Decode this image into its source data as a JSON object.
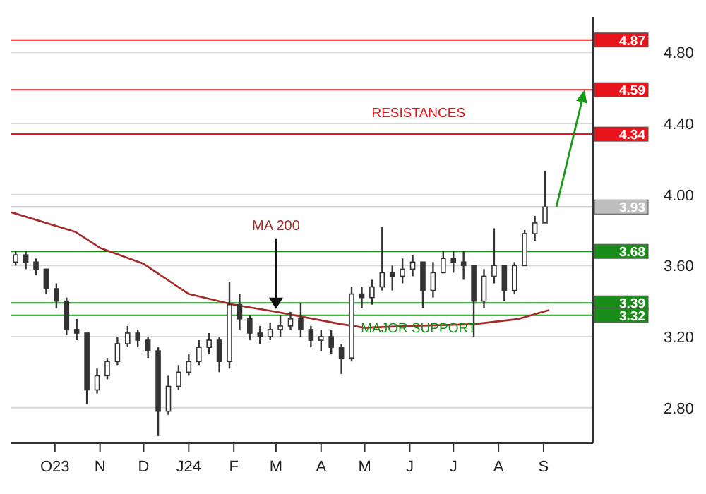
{
  "chart_data": {
    "type": "candlestick",
    "color": "#333333",
    "x": [
      "2023-09-04",
      "2023-09-11",
      "2023-09-18",
      "2023-09-25",
      "2023-10-02",
      "2023-10-09",
      "2023-10-16",
      "2023-10-23",
      "2023-10-30",
      "2023-11-06",
      "2023-11-13",
      "2023-11-20",
      "2023-11-27",
      "2023-12-04",
      "2023-12-11",
      "2023-12-18",
      "2023-12-25",
      "2024-01-01",
      "2024-01-08",
      "2024-01-15",
      "2024-01-22",
      "2024-01-29",
      "2024-02-05",
      "2024-02-12",
      "2024-02-19",
      "2024-02-26",
      "2024-03-04",
      "2024-03-11",
      "2024-03-18",
      "2024-03-25",
      "2024-04-01",
      "2024-04-08",
      "2024-04-15",
      "2024-04-22",
      "2024-04-29",
      "2024-05-06",
      "2024-05-13",
      "2024-05-20",
      "2024-05-27",
      "2024-06-03",
      "2024-06-10",
      "2024-06-17",
      "2024-06-24",
      "2024-07-01",
      "2024-07-08",
      "2024-07-15",
      "2024-07-22",
      "2024-07-29",
      "2024-08-05",
      "2024-08-12",
      "2024-08-19",
      "2024-08-26",
      "2024-09-02"
    ],
    "ohlc": [
      [
        3.62,
        3.68,
        3.6,
        3.66
      ],
      [
        3.66,
        3.68,
        3.58,
        3.62
      ],
      [
        3.62,
        3.64,
        3.55,
        3.58
      ],
      [
        3.58,
        3.58,
        3.44,
        3.47
      ],
      [
        3.47,
        3.5,
        3.36,
        3.4
      ],
      [
        3.4,
        3.42,
        3.21,
        3.24
      ],
      [
        3.24,
        3.3,
        3.18,
        3.22
      ],
      [
        3.22,
        3.22,
        2.82,
        2.9
      ],
      [
        2.9,
        3.02,
        2.88,
        2.98
      ],
      [
        2.98,
        3.08,
        2.96,
        3.06
      ],
      [
        3.06,
        3.2,
        3.04,
        3.16
      ],
      [
        3.16,
        3.26,
        3.14,
        3.22
      ],
      [
        3.22,
        3.24,
        3.14,
        3.18
      ],
      [
        3.18,
        3.2,
        3.08,
        3.12
      ],
      [
        3.12,
        3.14,
        2.64,
        2.78
      ],
      [
        2.78,
        2.98,
        2.76,
        2.92
      ],
      [
        2.92,
        3.04,
        2.9,
        3.0
      ],
      [
        3.0,
        3.1,
        2.98,
        3.06
      ],
      [
        3.06,
        3.18,
        3.04,
        3.14
      ],
      [
        3.14,
        3.22,
        3.1,
        3.18
      ],
      [
        3.18,
        3.2,
        3.0,
        3.06
      ],
      [
        3.06,
        3.51,
        3.02,
        3.38
      ],
      [
        3.38,
        3.44,
        3.24,
        3.3
      ],
      [
        3.3,
        3.32,
        3.18,
        3.22
      ],
      [
        3.22,
        3.26,
        3.16,
        3.2
      ],
      [
        3.2,
        3.28,
        3.18,
        3.24
      ],
      [
        3.24,
        3.32,
        3.2,
        3.26
      ],
      [
        3.26,
        3.34,
        3.24,
        3.3
      ],
      [
        3.3,
        3.39,
        3.2,
        3.24
      ],
      [
        3.24,
        3.26,
        3.14,
        3.18
      ],
      [
        3.18,
        3.24,
        3.12,
        3.2
      ],
      [
        3.2,
        3.24,
        3.1,
        3.14
      ],
      [
        3.14,
        3.16,
        2.99,
        3.08
      ],
      [
        3.08,
        3.48,
        3.06,
        3.44
      ],
      [
        3.44,
        3.48,
        3.36,
        3.42
      ],
      [
        3.42,
        3.52,
        3.38,
        3.48
      ],
      [
        3.48,
        3.82,
        3.46,
        3.56
      ],
      [
        3.56,
        3.6,
        3.46,
        3.54
      ],
      [
        3.54,
        3.64,
        3.5,
        3.58
      ],
      [
        3.58,
        3.66,
        3.54,
        3.62
      ],
      [
        3.62,
        3.62,
        3.36,
        3.46
      ],
      [
        3.46,
        3.62,
        3.42,
        3.56
      ],
      [
        3.56,
        3.68,
        3.56,
        3.64
      ],
      [
        3.64,
        3.68,
        3.56,
        3.62
      ],
      [
        3.62,
        3.68,
        3.52,
        3.6
      ],
      [
        3.6,
        3.6,
        3.2,
        3.4
      ],
      [
        3.4,
        3.58,
        3.36,
        3.54
      ],
      [
        3.54,
        3.81,
        3.5,
        3.6
      ],
      [
        3.6,
        3.6,
        3.4,
        3.46
      ],
      [
        3.46,
        3.62,
        3.44,
        3.6
      ],
      [
        3.6,
        3.8,
        3.6,
        3.78
      ],
      [
        3.78,
        3.88,
        3.74,
        3.84
      ],
      [
        3.84,
        4.13,
        3.84,
        3.93
      ]
    ],
    "series": [
      {
        "type": "line",
        "name": "MA 200",
        "color": "#a52a2a",
        "x": [
          "2023-09-01",
          "2023-10-15",
          "2023-11-01",
          "2023-12-01",
          "2024-01-01",
          "2024-02-01",
          "2024-03-01",
          "2024-04-15",
          "2024-05-01",
          "2024-06-01",
          "2024-07-15",
          "2024-08-15",
          "2024-09-05"
        ],
        "values": [
          3.9,
          3.79,
          3.7,
          3.61,
          3.44,
          3.38,
          3.34,
          3.27,
          3.25,
          3.26,
          3.27,
          3.3,
          3.35
        ]
      }
    ],
    "xlim": [
      "2023-09-01",
      "2024-10-05"
    ],
    "xticks": [
      {
        "value": "2023-10-01",
        "label": "O23"
      },
      {
        "value": "2023-11-01",
        "label": "N"
      },
      {
        "value": "2023-12-01",
        "label": "D"
      },
      {
        "value": "2024-01-01",
        "label": "J24"
      },
      {
        "value": "2024-02-01",
        "label": "F"
      },
      {
        "value": "2024-03-01",
        "label": "M"
      },
      {
        "value": "2024-04-01",
        "label": "A"
      },
      {
        "value": "2024-05-01",
        "label": "M"
      },
      {
        "value": "2024-06-01",
        "label": "J"
      },
      {
        "value": "2024-07-01",
        "label": "J"
      },
      {
        "value": "2024-08-01",
        "label": "A"
      },
      {
        "value": "2024-09-01",
        "label": "S"
      }
    ],
    "ylim": [
      2.6,
      5.0
    ],
    "yticks": [
      {
        "value": 2.8,
        "label": "2.80"
      },
      {
        "value": 3.2,
        "label": "3.20"
      },
      {
        "value": 3.6,
        "label": "3.60"
      },
      {
        "value": 4.0,
        "label": "4.00"
      },
      {
        "value": 4.4,
        "label": "4.40"
      },
      {
        "value": 4.8,
        "label": "4.80"
      }
    ],
    "grid": "y",
    "ref_lines": [
      {
        "axis": "y",
        "value": 4.87,
        "label": "4.87",
        "color": "#e8141b"
      },
      {
        "axis": "y",
        "value": 4.59,
        "label": "4.59",
        "color": "#e8141b"
      },
      {
        "axis": "y",
        "value": 4.34,
        "label": "4.34",
        "color": "#e8141b"
      },
      {
        "axis": "y",
        "value": 3.93,
        "label": "3.93",
        "color": "#bdbdbd"
      },
      {
        "axis": "y",
        "value": 3.68,
        "label": "3.68",
        "color": "#1a8c1a"
      },
      {
        "axis": "y",
        "value": 3.39,
        "label": "3.39",
        "color": "#1a8c1a"
      },
      {
        "axis": "y",
        "value": 3.32,
        "label": "3.32",
        "color": "#1a8c1a"
      }
    ],
    "annotations": [
      "RESISTANCES",
      "MAJOR SUPPORT"
    ]
  }
}
